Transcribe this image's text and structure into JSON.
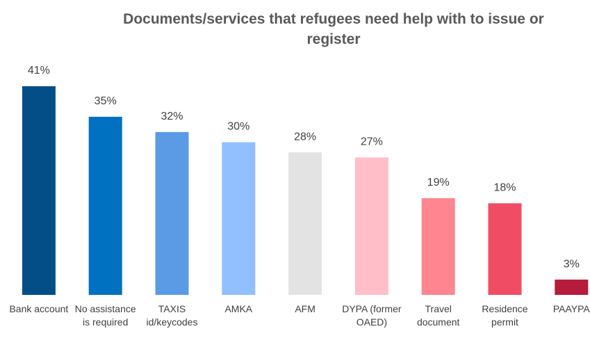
{
  "chart_data": {
    "type": "bar",
    "title": "Documents/services that refugees need help with to issue or register",
    "categories": [
      "Bank account",
      "No assistance is required",
      "TAXIS id/keycodes",
      "AMKA",
      "AFM",
      "DYPA (former OAED)",
      "Travel document",
      "Residence permit",
      "PAAYPA"
    ],
    "values": [
      41,
      35,
      32,
      30,
      28,
      27,
      19,
      18,
      3
    ],
    "value_labels": [
      "41%",
      "35%",
      "32%",
      "30%",
      "28%",
      "27%",
      "19%",
      "18%",
      "3%"
    ],
    "colors": [
      "#034e87",
      "#0070c0",
      "#5b9be6",
      "#92c0ff",
      "#e3e3e3",
      "#ffbec8",
      "#ff8590",
      "#f04c64",
      "#b51b3a"
    ]
  }
}
